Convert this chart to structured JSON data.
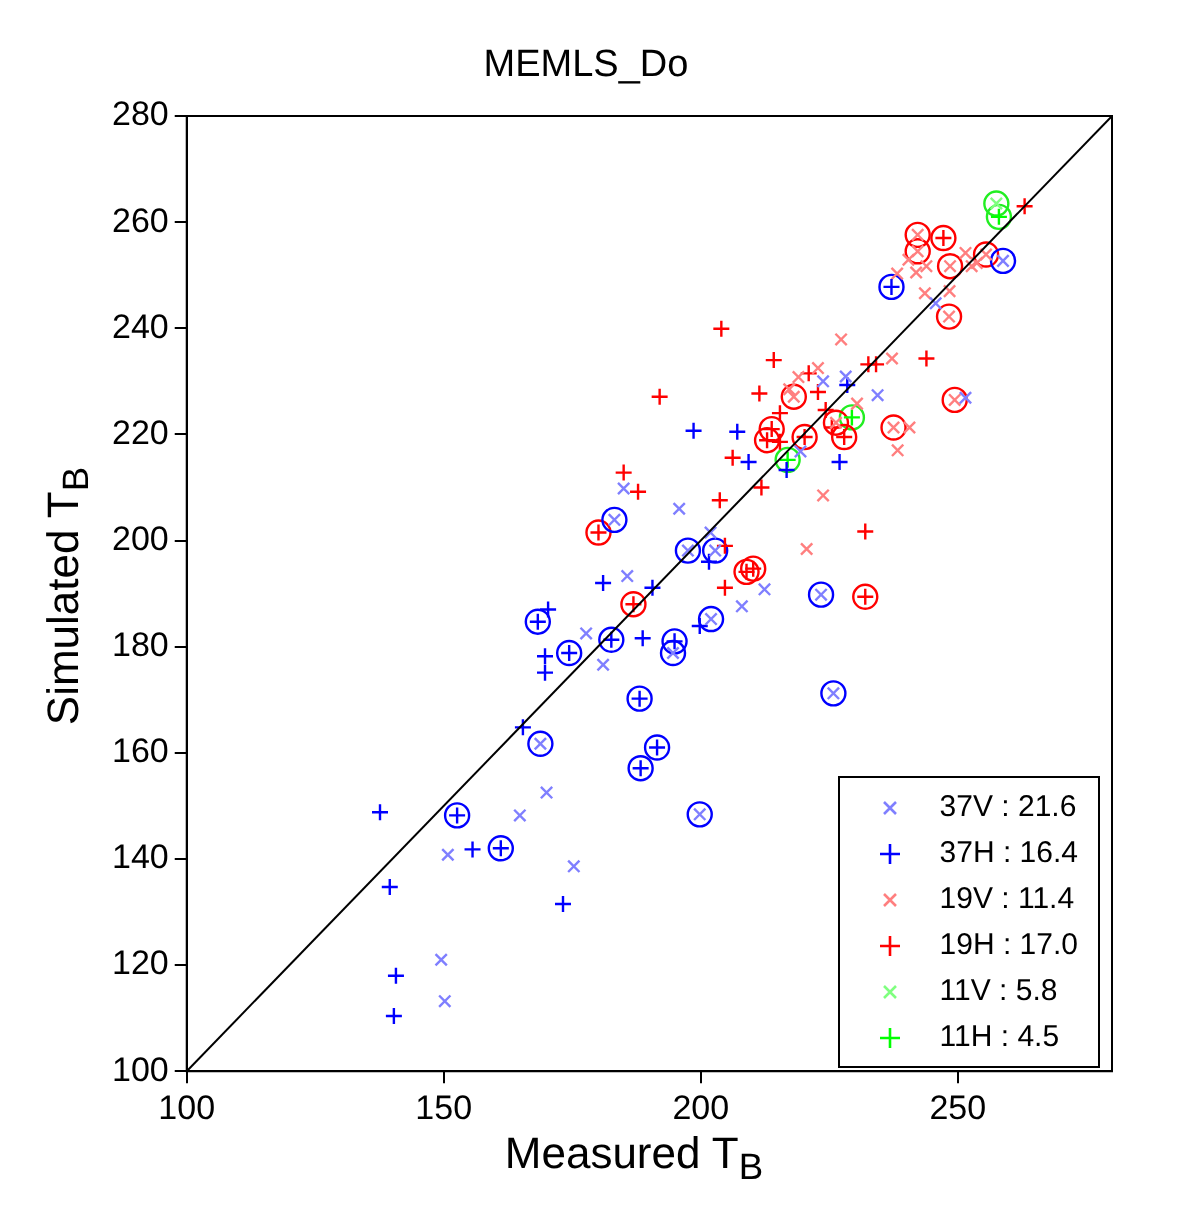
{
  "chart_data": {
    "type": "scatter",
    "title": "MEMLS_Do",
    "xlabel": "Measured T$_{B}$",
    "ylabel": "Simulated T$_{B}$",
    "xlim": [
      100,
      280
    ],
    "xticks": [
      100,
      150,
      200,
      250
    ],
    "ylim": [
      100,
      280
    ],
    "yticks": [
      100,
      120,
      140,
      160,
      180,
      200,
      220,
      240,
      260,
      280
    ],
    "grid": false,
    "legend": "bottom right",
    "series": [
      {
        "type": "line",
        "color": "#000000",
        "marker": "none",
        "x": [
          100,
          280
        ],
        "values": [
          100,
          280
        ]
      },
      {
        "name": "37V : 21.6",
        "color": "#7f7fff",
        "marker": "x",
        "x": [
          185.0,
          185.7,
          177.7,
          181.0,
          170.0,
          164.8,
          150.8,
          175.3,
          149.5,
          150.2,
          245.7,
          228.2,
          223.8,
          234.4,
          251.5,
          219.4,
          195.8,
          201.9,
          212.4,
          208.0,
          183.2,
          168.8,
          225.8,
          199.8,
          194.6,
          258.8,
          197.5,
          202.8,
          223.4,
          202.0
        ],
        "values": [
          209.8,
          193.3,
          182.5,
          176.6,
          152.5,
          148.2,
          140.8,
          138.6,
          121.0,
          113.2,
          244.7,
          230.9,
          230.0,
          227.4,
          226.9,
          216.8,
          206.0,
          201.5,
          190.8,
          187.6,
          203.9,
          161.7,
          171.2,
          148.4,
          178.8,
          252.7,
          198.1,
          198.1,
          189.8,
          185.2
        ]
      },
      {
        "name": "37H : 16.4",
        "color": "#0000ff",
        "marker": "cross",
        "x": [
          181.0,
          170.3,
          169.7,
          169.7,
          165.4,
          137.6,
          155.6,
          139.5,
          173.2,
          140.7,
          140.3,
          188.7,
          198.6,
          207.1,
          209.3,
          216.7,
          227.0,
          228.5,
          201.6,
          190.6,
          199.8,
          168.3,
          182.6,
          174.4,
          188.1,
          188.3,
          191.5,
          152.6,
          161.1,
          194.9,
          237.1
        ],
        "values": [
          192.0,
          187.0,
          178.2,
          175.1,
          164.8,
          148.8,
          141.8,
          134.7,
          131.5,
          118.0,
          110.4,
          181.6,
          220.7,
          220.5,
          214.8,
          213.3,
          214.8,
          229.3,
          196.0,
          191.1,
          183.9,
          184.7,
          181.3,
          178.8,
          170.2,
          157.1,
          161.0,
          148.2,
          142.0,
          181.0,
          247.8
        ]
      },
      {
        "name": "19V : 11.4",
        "color": "#ff7f7f",
        "marker": "x",
        "x": [
          240.4,
          243.9,
          241.9,
          251.5,
          252.7,
          253.7,
          238.2,
          243.6,
          248.4,
          227.3,
          237.2,
          222.8,
          219.0,
          217.2,
          230.4,
          240.6,
          238.3,
          223.8,
          220.6,
          242.2,
          242.2,
          248.5,
          255.5,
          248.3,
          218.1,
          249.4,
          226.3,
          237.5
        ],
        "values": [
          252.9,
          251.7,
          250.5,
          254.2,
          251.7,
          252.3,
          250.3,
          246.6,
          247.0,
          237.9,
          234.3,
          232.5,
          230.8,
          228.5,
          225.8,
          221.3,
          217.0,
          208.5,
          198.4,
          257.6,
          254.5,
          251.7,
          253.9,
          242.2,
          227.1,
          226.5,
          222.2,
          221.3
        ]
      },
      {
        "name": "19H : 17.0",
        "color": "#ff0000",
        "marker": "cross",
        "x": [
          185.0,
          204.0,
          214.2,
          243.9,
          232.6,
          234.1,
          221.0,
          192.0,
          211.4,
          222.8,
          215.4,
          224.3,
          225.5,
          215.4,
          206.2,
          187.8,
          211.8,
          203.7,
          232.0,
          204.7,
          204.7,
          263.0,
          180.1,
          186.9,
          247.2,
          213.8,
          212.9,
          220.2,
          227.9,
          208.9,
          210.2,
          232.0
        ],
        "values": [
          212.8,
          239.9,
          234.0,
          234.3,
          233.2,
          233.2,
          231.5,
          227.1,
          227.7,
          228.0,
          224.0,
          224.6,
          221.3,
          218.6,
          215.6,
          209.2,
          210.0,
          207.6,
          201.7,
          199.0,
          191.1,
          263.0,
          201.5,
          188.0,
          257.0,
          221.0,
          218.9,
          219.5,
          219.5,
          194.1,
          194.7,
          189.4
        ]
      },
      {
        "name": "11V : 5.8",
        "color": "#7fff7f",
        "marker": "x",
        "x": [
          257.5
        ],
        "values": [
          263.5
        ]
      },
      {
        "name": "11H : 4.5",
        "color": "#00ff00",
        "marker": "cross",
        "x": [
          258.0,
          229.4,
          216.9
        ],
        "values": [
          261.0,
          223.2,
          215.2
        ]
      },
      {
        "color": "#0000ff",
        "marker": "circle",
        "x": [
          183.2,
          168.8,
          225.8,
          199.8,
          194.6,
          258.8,
          197.5,
          202.8,
          223.4,
          202.0,
          168.3,
          182.6,
          174.4,
          188.1,
          188.3,
          191.5,
          152.6,
          161.1,
          194.9,
          237.1
        ],
        "values": [
          203.9,
          161.7,
          171.2,
          148.4,
          178.8,
          252.7,
          198.1,
          198.1,
          189.8,
          185.2,
          184.7,
          181.3,
          178.8,
          170.2,
          157.1,
          161.0,
          148.2,
          142.0,
          181.0,
          247.8
        ]
      },
      {
        "color": "#ff0000",
        "marker": "circle",
        "x": [
          242.2,
          242.2,
          248.5,
          255.5,
          248.3,
          218.1,
          249.4,
          226.3,
          237.5,
          180.1,
          186.9,
          247.2,
          213.8,
          212.9,
          220.2,
          227.9,
          208.9,
          210.2,
          232.0
        ],
        "values": [
          257.6,
          254.5,
          251.7,
          253.9,
          242.2,
          227.1,
          226.5,
          222.2,
          221.3,
          201.5,
          188.0,
          257.0,
          221.0,
          218.9,
          219.5,
          219.5,
          194.1,
          194.7,
          189.4
        ]
      },
      {
        "color": "#22ee22",
        "marker": "circle",
        "x": [
          257.5,
          258.0,
          229.4,
          216.9
        ],
        "values": [
          263.5,
          261.0,
          223.2,
          215.2
        ]
      }
    ]
  }
}
